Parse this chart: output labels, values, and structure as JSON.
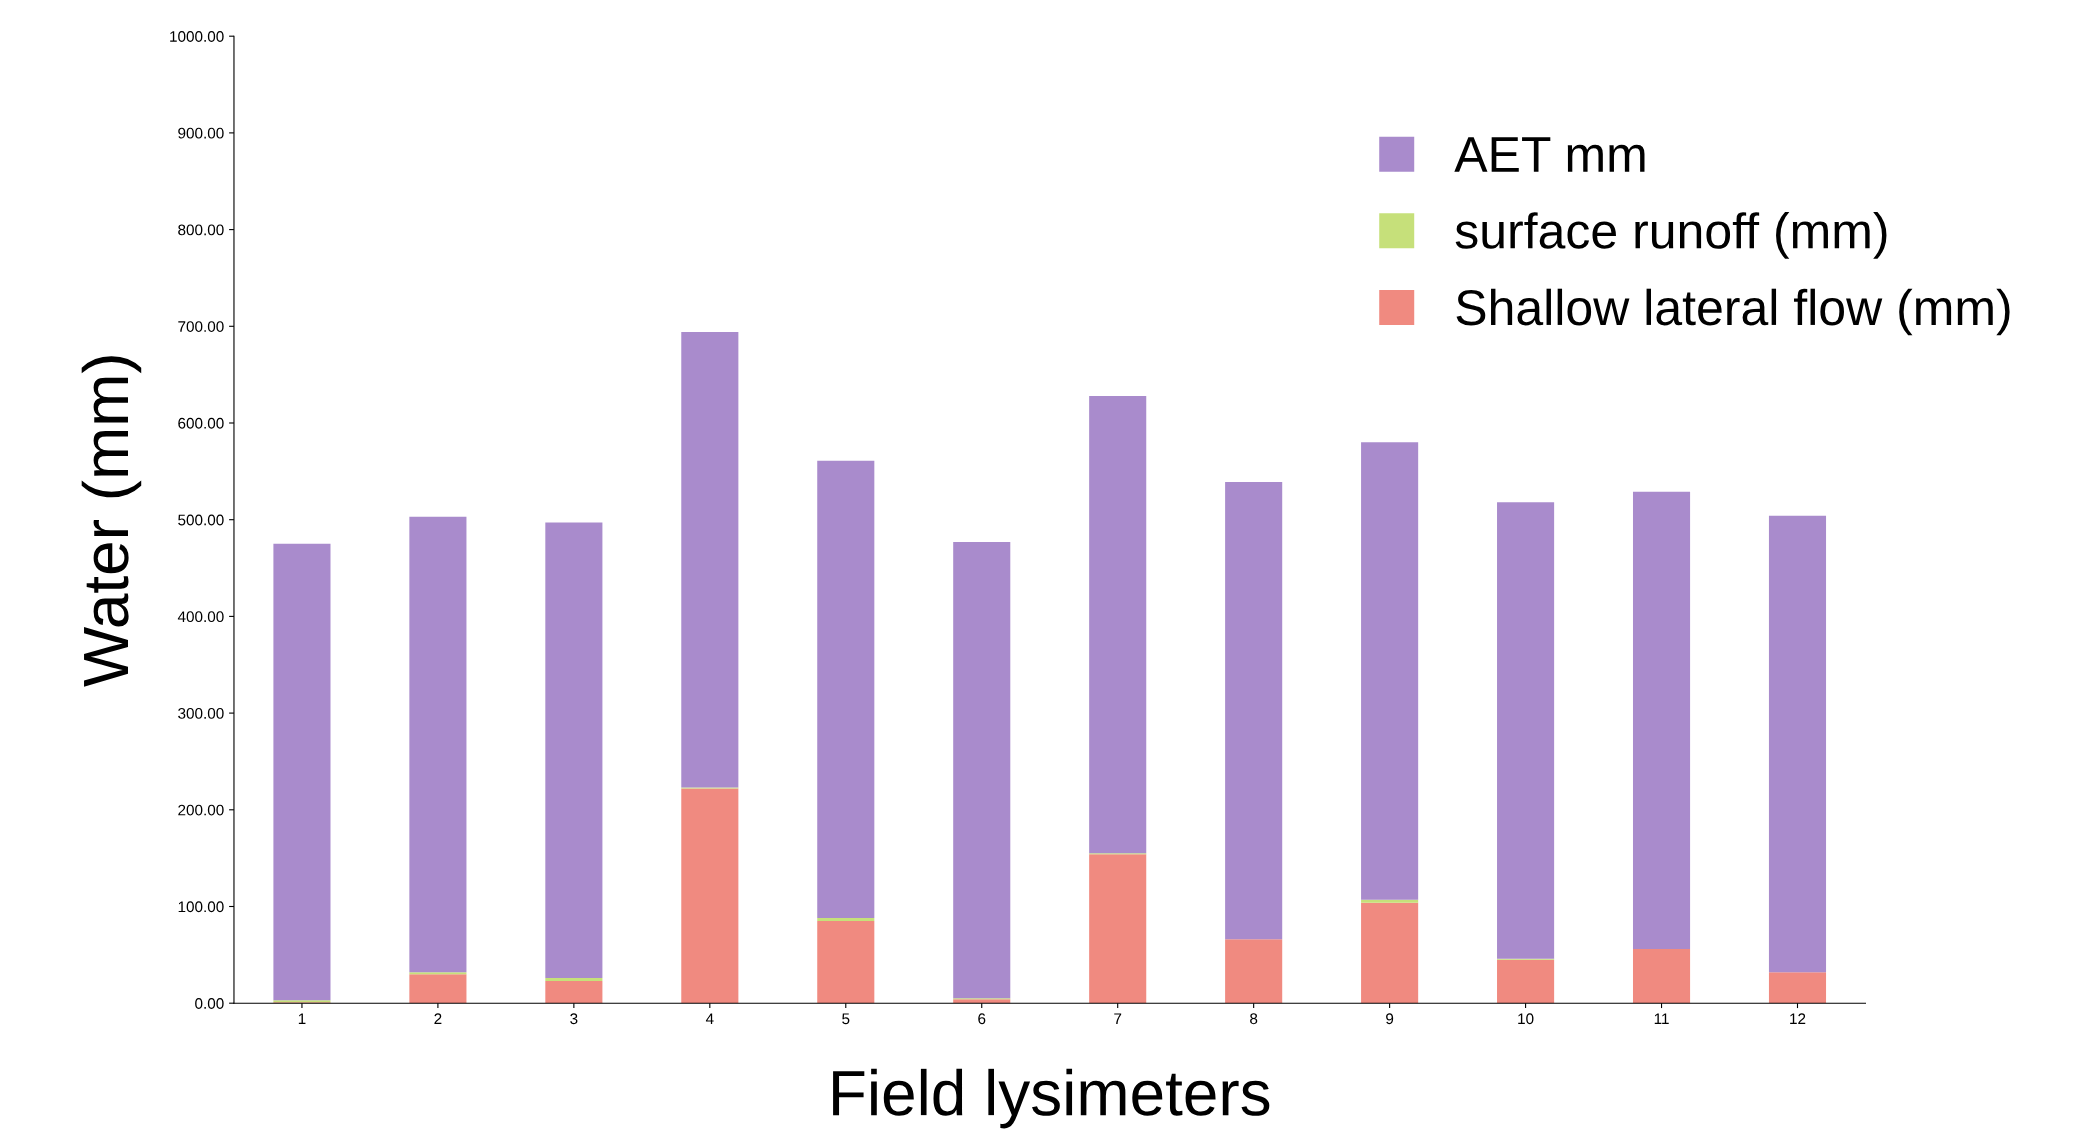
{
  "chart_data": {
    "type": "bar",
    "stacked": true,
    "xlabel": "Field lysimeters",
    "ylabel": "Water (mm)",
    "categories": [
      "1",
      "2",
      "3",
      "4",
      "5",
      "6",
      "7",
      "8",
      "9",
      "10",
      "11",
      "12"
    ],
    "series": [
      {
        "name": "Shallow lateral flow (mm)",
        "color": "#f08a80",
        "values": [
          1,
          30,
          23,
          222,
          85,
          4,
          154,
          66,
          104,
          45,
          56,
          32
        ]
      },
      {
        "name": "surface runoff (mm)",
        "color": "#c6e07a",
        "values": [
          2,
          2,
          3,
          1,
          3,
          1,
          1,
          0,
          3,
          1,
          0,
          0
        ]
      },
      {
        "name": "AET mm",
        "color": "#a98bcc",
        "values": [
          472,
          471,
          471,
          471,
          473,
          472,
          473,
          473,
          473,
          472,
          473,
          472
        ]
      }
    ],
    "ylim": [
      0,
      1000
    ],
    "yticks": [
      {
        "value": 0,
        "label": "0.00"
      },
      {
        "value": 100,
        "label": "100.00"
      },
      {
        "value": 200,
        "label": "200.00"
      },
      {
        "value": 300,
        "label": "300.00"
      },
      {
        "value": 400,
        "label": "400.00"
      },
      {
        "value": 500,
        "label": "500.00"
      },
      {
        "value": 600,
        "label": "600.00"
      },
      {
        "value": 700,
        "label": "700.00"
      },
      {
        "value": 800,
        "label": "800.00"
      },
      {
        "value": 900,
        "label": "900.00"
      },
      {
        "value": 1000,
        "label": "1000.00"
      }
    ],
    "grid": false,
    "legend": "top right"
  }
}
